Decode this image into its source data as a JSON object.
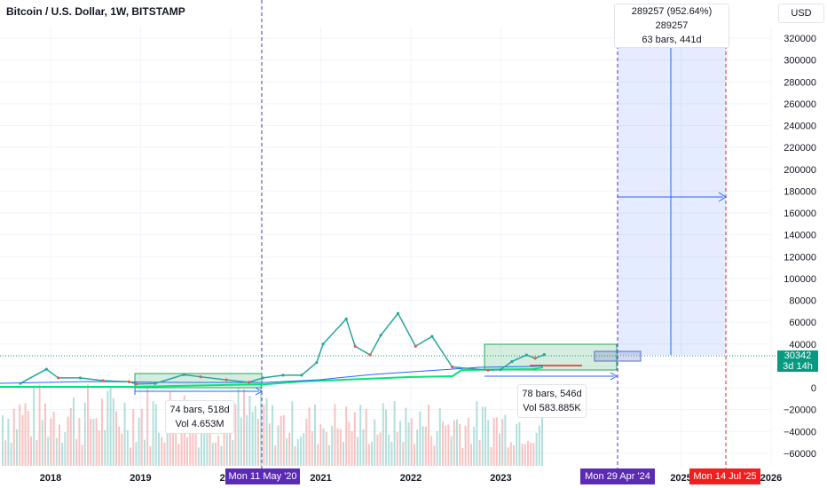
{
  "header": {
    "title": "Bitcoin / U.S. Dollar, 1W, BITSTAMP",
    "currency": "USD"
  },
  "price": {
    "current": "30342",
    "countdown": "3d 14h"
  },
  "measure_box": {
    "line1": "289257 (952.64%) 289257",
    "line2": "63 bars, 441d"
  },
  "range_box_1": {
    "line1": "74 bars, 518d",
    "line2": "Vol 4.653M"
  },
  "range_box_2": {
    "line1": "78 bars, 546d",
    "line2": "Vol 583.885K"
  },
  "date_tags": {
    "may20": "Mon 11 May '20",
    "apr24": "Mon 29 Apr '24",
    "jul25": "Mon 14 Jul '25"
  },
  "colors": {
    "accent": "#2962ff",
    "up": "#26a69a",
    "down": "#ef5350",
    "tag_purple": "#5b2bb5",
    "tag_red": "#f21e1e"
  },
  "chart_data": {
    "type": "line",
    "title": "Bitcoin / U.S. Dollar, 1W, BITSTAMP",
    "y_ticks": [
      320000,
      300000,
      280000,
      260000,
      240000,
      220000,
      200000,
      180000,
      160000,
      140000,
      120000,
      100000,
      80000,
      60000,
      40000,
      20000,
      0,
      -20000,
      -40000,
      -60000
    ],
    "y_tick_labels": [
      "320000",
      "300000",
      "280000",
      "260000",
      "240000",
      "220000",
      "200000",
      "180000",
      "160000",
      "140000",
      "120000",
      "100000",
      "80000",
      "60000",
      "40000",
      "20000",
      "0",
      "−20000",
      "−40000",
      "−60000"
    ],
    "x_labels": [
      "2018",
      "2019",
      "2020",
      "2021",
      "2022",
      "2023",
      "2025",
      "2026"
    ],
    "ylim": [
      -70000,
      330000
    ],
    "series": [
      {
        "points": [
          [
            "2017-09-01",
            4000
          ],
          [
            "2017-12-15",
            17000
          ],
          [
            "2018-02-01",
            9000
          ],
          [
            "2018-05-01",
            9000
          ],
          [
            "2018-08-01",
            6500
          ],
          [
            "2018-11-15",
            5500
          ],
          [
            "2018-12-15",
            3500
          ],
          [
            "2019-03-01",
            3900
          ],
          [
            "2019-06-25",
            12000
          ],
          [
            "2019-09-01",
            10000
          ],
          [
            "2019-12-15",
            7200
          ],
          [
            "2020-03-15",
            5000
          ],
          [
            "2020-05-11",
            9000
          ],
          [
            "2020-08-01",
            11500
          ],
          [
            "2020-10-15",
            11500
          ],
          [
            "2020-12-15",
            23000
          ],
          [
            "2021-01-10",
            40000
          ],
          [
            "2021-04-14",
            63000
          ],
          [
            "2021-05-20",
            38000
          ],
          [
            "2021-07-20",
            30000
          ],
          [
            "2021-09-01",
            48000
          ],
          [
            "2021-11-10",
            68000
          ],
          [
            "2022-01-20",
            38000
          ],
          [
            "2022-03-28",
            47000
          ],
          [
            "2022-06-18",
            19000
          ],
          [
            "2022-11-10",
            16000
          ],
          [
            "2022-12-31",
            16500
          ],
          [
            "2023-02-15",
            24000
          ],
          [
            "2023-04-15",
            30000
          ],
          [
            "2023-05-20",
            27000
          ],
          [
            "2023-06-26",
            30342
          ]
        ]
      }
    ]
  }
}
